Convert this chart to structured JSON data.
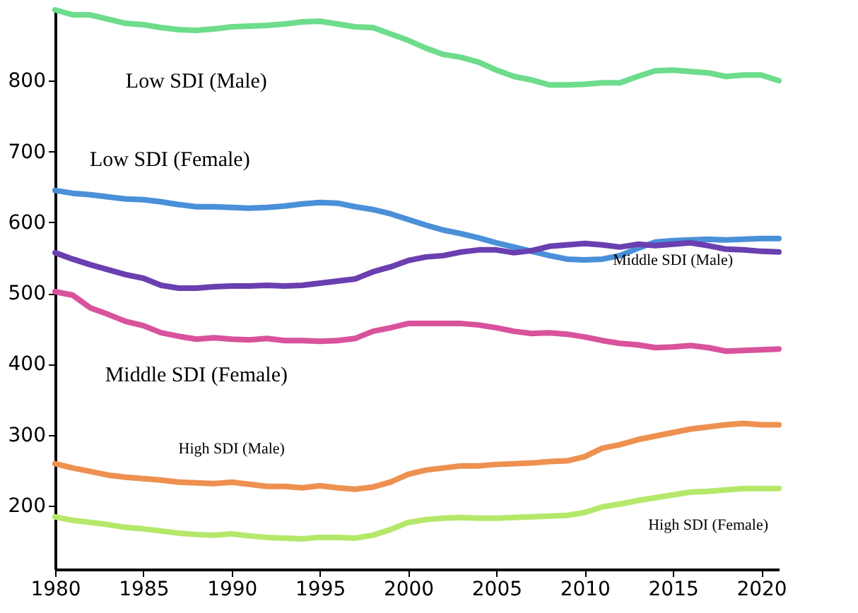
{
  "chart_data": {
    "type": "line",
    "x": [
      1980,
      1981,
      1982,
      1983,
      1984,
      1985,
      1986,
      1987,
      1988,
      1989,
      1990,
      1991,
      1992,
      1993,
      1994,
      1995,
      1996,
      1997,
      1998,
      1999,
      2000,
      2001,
      2002,
      2003,
      2004,
      2005,
      2006,
      2007,
      2008,
      2009,
      2010,
      2011,
      2012,
      2013,
      2014,
      2015,
      2016,
      2017,
      2018,
      2019,
      2020,
      2021
    ],
    "series": [
      {
        "name": "Low SDI (Male)",
        "color": "#6ddc8c",
        "values": [
          900,
          893,
          893,
          887,
          881,
          879,
          875,
          872,
          871,
          873,
          876,
          877,
          878,
          880,
          883,
          884,
          880,
          876,
          875,
          866,
          857,
          846,
          837,
          833,
          826,
          815,
          806,
          801,
          794,
          794,
          795,
          797,
          797,
          806,
          814,
          815,
          813,
          811,
          806,
          808,
          808,
          800
        ]
      },
      {
        "name": "Low SDI (Female)",
        "color": "#4a90d9",
        "values": [
          645,
          641,
          639,
          636,
          633,
          632,
          629,
          625,
          622,
          622,
          621,
          620,
          621,
          623,
          626,
          628,
          627,
          622,
          618,
          612,
          604,
          596,
          589,
          584,
          578,
          571,
          565,
          559,
          553,
          548,
          547,
          548,
          553,
          563,
          572,
          574,
          575,
          576,
          575,
          576,
          577,
          577
        ]
      },
      {
        "name": "Middle SDI (Male)",
        "color": "#6a3fb0",
        "values": [
          557,
          548,
          540,
          533,
          526,
          521,
          511,
          507,
          507,
          509,
          510,
          510,
          511,
          510,
          511,
          514,
          517,
          520,
          530,
          537,
          546,
          551,
          553,
          558,
          561,
          561,
          557,
          560,
          566,
          568,
          570,
          568,
          565,
          569,
          567,
          569,
          571,
          567,
          562,
          561,
          559,
          558
        ]
      },
      {
        "name": "Middle SDI (Female)",
        "color": "#d9529c",
        "values": [
          502,
          497,
          479,
          470,
          460,
          454,
          444,
          439,
          435,
          437,
          435,
          434,
          436,
          433,
          433,
          432,
          433,
          436,
          446,
          451,
          457,
          457,
          457,
          457,
          455,
          451,
          446,
          443,
          444,
          442,
          438,
          433,
          429,
          427,
          423,
          424,
          426,
          423,
          418,
          419,
          420,
          421
        ]
      },
      {
        "name": "High SDI (Male)",
        "color": "#ee9050",
        "values": [
          259,
          253,
          248,
          243,
          240,
          238,
          236,
          233,
          232,
          231,
          233,
          230,
          227,
          227,
          225,
          228,
          225,
          223,
          226,
          233,
          244,
          250,
          253,
          256,
          256,
          258,
          259,
          260,
          262,
          263,
          269,
          281,
          286,
          293,
          298,
          303,
          308,
          311,
          314,
          316,
          314,
          314
        ]
      },
      {
        "name": "High SDI (Female)",
        "color": "#b5e86a",
        "values": [
          184,
          179,
          176,
          173,
          169,
          167,
          164,
          161,
          159,
          158,
          160,
          157,
          155,
          154,
          153,
          155,
          155,
          154,
          158,
          166,
          176,
          180,
          182,
          183,
          182,
          182,
          183,
          184,
          185,
          186,
          190,
          198,
          202,
          207,
          211,
          215,
          219,
          220,
          222,
          224,
          224,
          224
        ]
      }
    ],
    "xlim": [
      1980,
      2021
    ],
    "xticks": [
      1980,
      1985,
      1990,
      1995,
      2000,
      2005,
      2010,
      2015,
      2020
    ],
    "ylim": [
      110,
      900
    ],
    "yticks": [
      200,
      300,
      400,
      500,
      600,
      700,
      800
    ],
    "grid": false,
    "legend": false,
    "marker": "none",
    "line_style": "solid"
  }
}
